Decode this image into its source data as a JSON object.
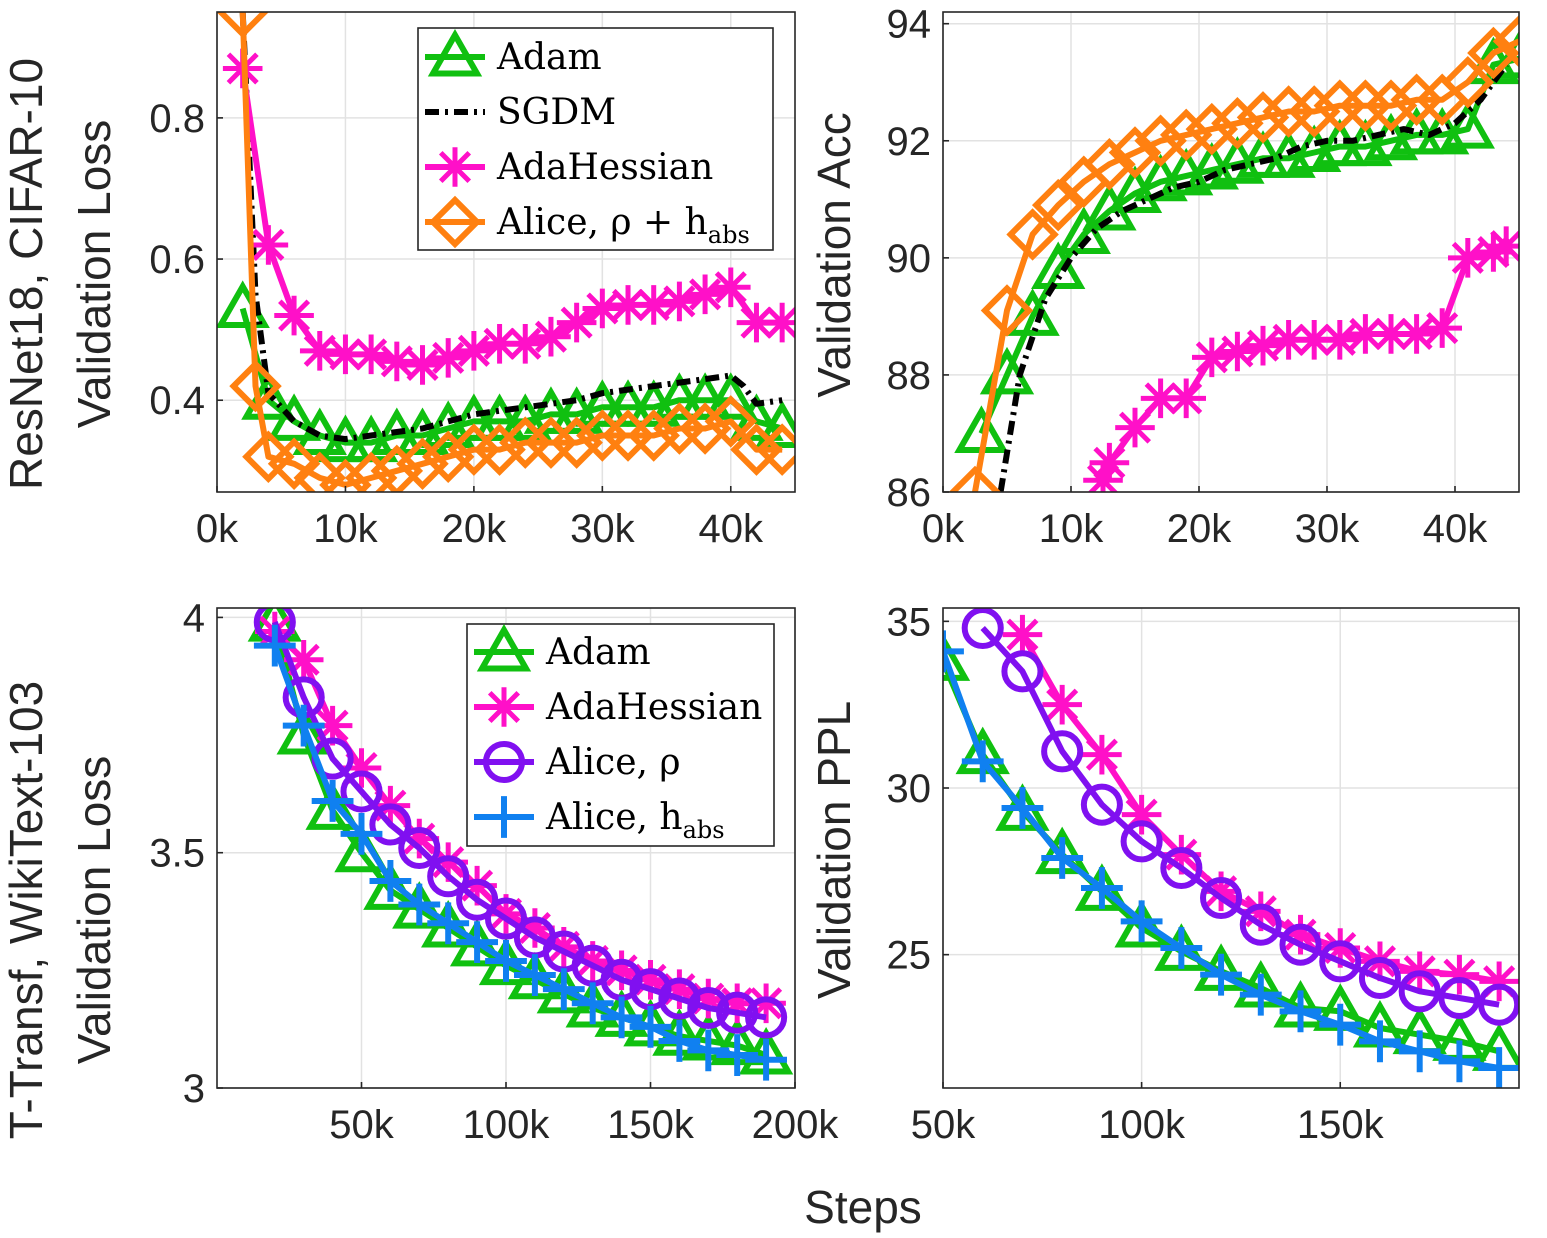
{
  "figure": {
    "xlabel": "Steps"
  },
  "chart_data": [
    {
      "id": "tl",
      "type": "line",
      "row_label": "ResNet18, CIFAR-10",
      "ylabel": "Validation Loss",
      "xlim": [
        0,
        45000
      ],
      "ylim": [
        0.27,
        0.95
      ],
      "xticks": [
        0,
        10000,
        20000,
        30000,
        40000
      ],
      "xtick_labels": [
        "0k",
        "10k",
        "20k",
        "30k",
        "40k"
      ],
      "yticks": [
        0.4,
        0.6,
        0.8
      ],
      "ytick_labels": [
        "0.4",
        "0.6",
        "0.8"
      ],
      "legend": {
        "position": "top-right"
      },
      "series": [
        {
          "key": "adam",
          "name": "Adam",
          "color": "#10c010",
          "marker": "triangle",
          "x": [
            2000,
            4000,
            6000,
            8000,
            10000,
            12000,
            14000,
            16000,
            18000,
            20000,
            22000,
            24000,
            26000,
            28000,
            30000,
            32000,
            34000,
            36000,
            38000,
            40000,
            42000,
            44000
          ],
          "y": [
            0.53,
            0.4,
            0.37,
            0.35,
            0.34,
            0.34,
            0.35,
            0.35,
            0.36,
            0.37,
            0.37,
            0.37,
            0.38,
            0.38,
            0.39,
            0.39,
            0.39,
            0.4,
            0.4,
            0.4,
            0.37,
            0.36
          ]
        },
        {
          "key": "sgdm",
          "name": "SGDM",
          "color": "#000000",
          "marker": "none",
          "dash": "14,6,3,6",
          "x": [
            2000,
            3000,
            4000,
            6000,
            8000,
            10000,
            12000,
            14000,
            16000,
            18000,
            20000,
            22000,
            24000,
            26000,
            28000,
            30000,
            32000,
            34000,
            36000,
            38000,
            40000,
            41000,
            42000,
            44000
          ],
          "y": [
            0.95,
            0.55,
            0.41,
            0.37,
            0.35,
            0.345,
            0.35,
            0.355,
            0.36,
            0.37,
            0.38,
            0.385,
            0.39,
            0.395,
            0.4,
            0.41,
            0.415,
            0.42,
            0.425,
            0.43,
            0.435,
            0.42,
            0.395,
            0.4
          ]
        },
        {
          "key": "adahessian",
          "name": "AdaHessian",
          "color": "#ff10c8",
          "marker": "star",
          "x": [
            2000,
            4000,
            6000,
            8000,
            10000,
            12000,
            14000,
            16000,
            18000,
            20000,
            22000,
            24000,
            26000,
            28000,
            30000,
            32000,
            34000,
            36000,
            38000,
            40000,
            42000,
            44000
          ],
          "y": [
            0.87,
            0.62,
            0.52,
            0.47,
            0.465,
            0.465,
            0.455,
            0.45,
            0.46,
            0.47,
            0.48,
            0.48,
            0.49,
            0.51,
            0.53,
            0.535,
            0.535,
            0.54,
            0.55,
            0.56,
            0.51,
            0.51
          ]
        },
        {
          "key": "alice",
          "name": "Alice, ρ + h_abs",
          "color": "#ff8010",
          "marker": "diamond",
          "x": [
            2000,
            3000,
            4000,
            6000,
            8000,
            10000,
            12000,
            14000,
            16000,
            18000,
            20000,
            22000,
            24000,
            26000,
            28000,
            30000,
            32000,
            34000,
            36000,
            38000,
            40000,
            42000,
            44000
          ],
          "y": [
            0.95,
            0.42,
            0.32,
            0.31,
            0.29,
            0.28,
            0.29,
            0.3,
            0.31,
            0.32,
            0.33,
            0.33,
            0.34,
            0.34,
            0.34,
            0.35,
            0.35,
            0.35,
            0.36,
            0.36,
            0.37,
            0.33,
            0.33
          ]
        }
      ]
    },
    {
      "id": "tr",
      "type": "line",
      "ylabel": "Validation Acc",
      "xlim": [
        0,
        45000
      ],
      "ylim": [
        86,
        94.2
      ],
      "xticks": [
        0,
        10000,
        20000,
        30000,
        40000
      ],
      "xtick_labels": [
        "0k",
        "10k",
        "20k",
        "30k",
        "40k"
      ],
      "yticks": [
        86,
        88,
        90,
        92,
        94
      ],
      "ytick_labels": [
        "86",
        "88",
        "90",
        "92",
        "94"
      ],
      "series": [
        {
          "key": "adam",
          "name": "Adam",
          "color": "#10c010",
          "marker": "triangle",
          "x": [
            3000,
            5000,
            7000,
            9000,
            11000,
            13000,
            15000,
            17000,
            19000,
            21000,
            23000,
            25000,
            27000,
            29000,
            31000,
            33000,
            35000,
            37000,
            39000,
            41000,
            43000,
            45000
          ],
          "y": [
            87.0,
            88.0,
            89.0,
            89.8,
            90.4,
            90.8,
            91.1,
            91.3,
            91.4,
            91.5,
            91.6,
            91.7,
            91.7,
            91.8,
            91.9,
            91.9,
            92.0,
            92.1,
            92.1,
            92.2,
            93.3,
            93.4
          ]
        },
        {
          "key": "sgdm",
          "name": "SGDM",
          "color": "#000000",
          "marker": "none",
          "dash": "14,6,3,6",
          "x": [
            4500,
            6000,
            8000,
            10000,
            12000,
            14000,
            16000,
            18000,
            20000,
            22000,
            24000,
            26000,
            28000,
            30000,
            32000,
            34000,
            36000,
            38000,
            40000,
            42000,
            44000
          ],
          "y": [
            86.0,
            88.0,
            89.3,
            90.0,
            90.5,
            90.8,
            91.0,
            91.2,
            91.3,
            91.5,
            91.6,
            91.7,
            91.9,
            92.0,
            92.0,
            92.1,
            92.2,
            92.1,
            92.3,
            92.7,
            93.3
          ]
        },
        {
          "key": "adahessian",
          "name": "AdaHessian",
          "color": "#ff10c8",
          "marker": "star",
          "x": [
            12500,
            13000,
            15000,
            17000,
            19000,
            21000,
            23000,
            25000,
            27000,
            29000,
            31000,
            33000,
            35000,
            37000,
            39000,
            41000,
            43000,
            44000
          ],
          "y": [
            86.2,
            86.5,
            87.1,
            87.6,
            87.6,
            88.3,
            88.4,
            88.5,
            88.6,
            88.6,
            88.6,
            88.7,
            88.7,
            88.7,
            88.8,
            90.0,
            90.1,
            90.2
          ]
        },
        {
          "key": "alice",
          "name": "Alice, ρ + h_abs",
          "color": "#ff8010",
          "marker": "diamond",
          "x": [
            2500,
            5000,
            7000,
            9000,
            11000,
            13000,
            15000,
            17000,
            19000,
            21000,
            23000,
            25000,
            27000,
            29000,
            31000,
            33000,
            35000,
            37000,
            39000,
            41000,
            43000,
            45000
          ],
          "y": [
            86.0,
            89.1,
            90.4,
            90.9,
            91.3,
            91.6,
            91.8,
            92.0,
            92.1,
            92.2,
            92.3,
            92.4,
            92.5,
            92.5,
            92.6,
            92.6,
            92.6,
            92.7,
            92.7,
            93.0,
            93.5,
            93.7
          ]
        }
      ]
    },
    {
      "id": "bl",
      "type": "line",
      "row_label": "T-Transf, WikiText-103",
      "ylabel": "Validation Loss",
      "xlim": [
        0,
        200000
      ],
      "ylim": [
        3.0,
        4.02
      ],
      "xticks": [
        50000,
        100000,
        150000,
        200000
      ],
      "xtick_labels": [
        "50k",
        "100k",
        "150k",
        "200k"
      ],
      "yticks": [
        3.0,
        3.5,
        4.0
      ],
      "ytick_labels": [
        "3",
        "3.5",
        "4"
      ],
      "legend": {
        "position": "top-right"
      },
      "series": [
        {
          "key": "adam",
          "name": "Adam",
          "color": "#10c010",
          "marker": "triangle",
          "x": [
            20000,
            30000,
            40000,
            50000,
            60000,
            70000,
            80000,
            90000,
            100000,
            110000,
            120000,
            130000,
            140000,
            150000,
            160000,
            170000,
            180000,
            190000
          ],
          "y": [
            3.99,
            3.75,
            3.59,
            3.5,
            3.42,
            3.38,
            3.34,
            3.3,
            3.26,
            3.23,
            3.2,
            3.17,
            3.15,
            3.13,
            3.11,
            3.1,
            3.09,
            3.07
          ]
        },
        {
          "key": "adahessian",
          "name": "AdaHessian",
          "color": "#ff10c8",
          "marker": "star",
          "x": [
            20000,
            30000,
            40000,
            50000,
            60000,
            70000,
            80000,
            90000,
            100000,
            110000,
            120000,
            130000,
            140000,
            150000,
            160000,
            170000,
            180000,
            190000
          ],
          "y": [
            3.97,
            3.91,
            3.77,
            3.68,
            3.6,
            3.53,
            3.48,
            3.43,
            3.37,
            3.34,
            3.3,
            3.27,
            3.25,
            3.23,
            3.21,
            3.19,
            3.18,
            3.18
          ]
        },
        {
          "key": "alice_rho",
          "name": "Alice, ρ",
          "color": "#8010f0",
          "marker": "circle",
          "x": [
            20000,
            30000,
            40000,
            50000,
            60000,
            70000,
            80000,
            90000,
            100000,
            110000,
            120000,
            130000,
            140000,
            150000,
            160000,
            170000,
            180000,
            190000
          ],
          "y": [
            3.99,
            3.83,
            3.7,
            3.63,
            3.56,
            3.51,
            3.45,
            3.4,
            3.36,
            3.32,
            3.29,
            3.26,
            3.23,
            3.21,
            3.19,
            3.17,
            3.16,
            3.15
          ]
        },
        {
          "key": "alice_habs",
          "name": "Alice, h_abs",
          "color": "#1080f0",
          "marker": "plus",
          "x": [
            20000,
            30000,
            40000,
            50000,
            60000,
            70000,
            80000,
            90000,
            100000,
            110000,
            120000,
            130000,
            140000,
            150000,
            160000,
            170000,
            180000,
            190000
          ],
          "y": [
            3.94,
            3.77,
            3.61,
            3.54,
            3.44,
            3.39,
            3.35,
            3.31,
            3.27,
            3.24,
            3.21,
            3.18,
            3.15,
            3.13,
            3.1,
            3.08,
            3.07,
            3.06
          ]
        }
      ]
    },
    {
      "id": "br",
      "type": "line",
      "ylabel": "Validation PPL",
      "xlim": [
        50000,
        195000
      ],
      "ylim": [
        21,
        35.4
      ],
      "xticks": [
        50000,
        100000,
        150000
      ],
      "xtick_labels": [
        "50k",
        "100k",
        "150k"
      ],
      "yticks": [
        25,
        30,
        35
      ],
      "ytick_labels": [
        "25",
        "30",
        "35"
      ],
      "series": [
        {
          "key": "adam",
          "name": "Adam",
          "color": "#10c010",
          "marker": "triangle",
          "x": [
            50000,
            60000,
            70000,
            80000,
            90000,
            100000,
            110000,
            120000,
            130000,
            140000,
            150000,
            160000,
            170000,
            180000,
            190000
          ],
          "y": [
            33.8,
            31.0,
            29.3,
            28.0,
            26.9,
            25.8,
            25.1,
            24.5,
            24.0,
            23.4,
            23.3,
            22.8,
            22.6,
            22.4,
            22.1
          ]
        },
        {
          "key": "adahessian",
          "name": "AdaHessian",
          "color": "#ff10c8",
          "marker": "star",
          "x": [
            70000,
            80000,
            90000,
            100000,
            110000,
            120000,
            130000,
            140000,
            150000,
            160000,
            170000,
            180000,
            190000
          ],
          "y": [
            34.6,
            32.5,
            31.0,
            29.2,
            28.0,
            26.9,
            26.3,
            25.6,
            25.2,
            24.8,
            24.5,
            24.4,
            24.2
          ]
        },
        {
          "key": "alice_rho",
          "name": "Alice, ρ",
          "color": "#8010f0",
          "marker": "circle",
          "x": [
            60000,
            70000,
            80000,
            90000,
            100000,
            110000,
            120000,
            130000,
            140000,
            150000,
            160000,
            170000,
            180000,
            190000
          ],
          "y": [
            34.8,
            33.5,
            31.1,
            29.5,
            28.4,
            27.6,
            26.7,
            25.9,
            25.3,
            24.8,
            24.3,
            23.9,
            23.7,
            23.5
          ]
        },
        {
          "key": "alice_habs",
          "name": "Alice, h_abs",
          "color": "#1080f0",
          "marker": "plus",
          "x": [
            50000,
            60000,
            70000,
            80000,
            90000,
            100000,
            110000,
            120000,
            130000,
            140000,
            150000,
            160000,
            170000,
            180000,
            190000
          ],
          "y": [
            34.1,
            30.8,
            29.4,
            27.9,
            27.0,
            26.0,
            25.2,
            24.4,
            23.8,
            23.3,
            22.9,
            22.4,
            22.1,
            21.8,
            21.6
          ]
        }
      ]
    }
  ],
  "legends": {
    "top": [
      {
        "key": "adam",
        "label": "Adam",
        "sub": ""
      },
      {
        "key": "sgdm",
        "label": "SGDM",
        "sub": ""
      },
      {
        "key": "adahessian",
        "label": "AdaHessian",
        "sub": ""
      },
      {
        "key": "alice",
        "label": "Alice, ρ + h",
        "sub": "abs"
      }
    ],
    "bottom": [
      {
        "key": "adam",
        "label": "Adam",
        "sub": ""
      },
      {
        "key": "adahessian",
        "label": "AdaHessian",
        "sub": ""
      },
      {
        "key": "alice_rho",
        "label": "Alice, ρ",
        "sub": ""
      },
      {
        "key": "alice_habs",
        "label": "Alice, h",
        "sub": "abs"
      }
    ]
  }
}
